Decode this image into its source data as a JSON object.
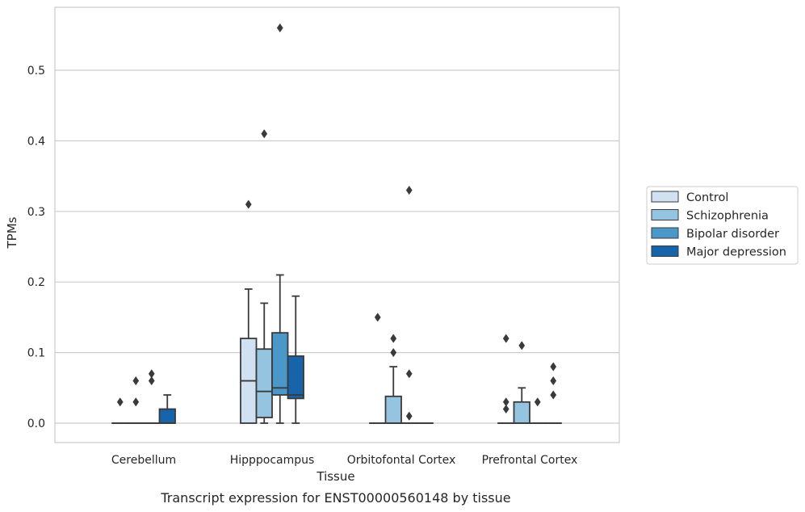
{
  "chart_data": {
    "type": "box",
    "xlabel": "Tissue",
    "ylabel": "TPMs",
    "caption": "Transcript expression for ENST00000560148 by tissue",
    "ylim": [
      -0.028,
      0.59
    ],
    "yticks": [
      0.0,
      0.1,
      0.2,
      0.3,
      0.4,
      0.5
    ],
    "ytick_labels": [
      "0.0",
      "0.1",
      "0.2",
      "0.3",
      "0.4",
      "0.5"
    ],
    "grid": "horizontal",
    "legend_position": "right",
    "categories": [
      "Cerebellum",
      "Hipppocampus",
      "Orbitofontal Cortex",
      "Prefrontal Cortex"
    ],
    "series": [
      {
        "name": "Control",
        "color": "#d0e1f2",
        "boxes": [
          {
            "q1": 0,
            "median": 0,
            "q3": 0,
            "whisker_low": 0,
            "whisker_high": 0,
            "outliers": [
              0.03
            ]
          },
          {
            "q1": 0,
            "median": 0.06,
            "q3": 0.12,
            "whisker_low": 0,
            "whisker_high": 0.19,
            "outliers": [
              0.31
            ]
          },
          {
            "q1": 0,
            "median": 0,
            "q3": 0,
            "whisker_low": 0,
            "whisker_high": 0,
            "outliers": [
              0.15
            ]
          },
          {
            "q1": 0,
            "median": 0,
            "q3": 0,
            "whisker_low": 0,
            "whisker_high": 0,
            "outliers": [
              0.12,
              0.03,
              0.02
            ]
          }
        ]
      },
      {
        "name": "Schizophrenia",
        "color": "#94c4df",
        "boxes": [
          {
            "q1": 0,
            "median": 0,
            "q3": 0,
            "whisker_low": 0,
            "whisker_high": 0,
            "outliers": [
              0.06,
              0.03
            ]
          },
          {
            "q1": 0.008,
            "median": 0.045,
            "q3": 0.105,
            "whisker_low": 0,
            "whisker_high": 0.17,
            "outliers": [
              0.41
            ]
          },
          {
            "q1": 0,
            "median": 0,
            "q3": 0.038,
            "whisker_low": 0,
            "whisker_high": 0.08,
            "outliers": [
              0.12,
              0.1
            ]
          },
          {
            "q1": 0,
            "median": 0,
            "q3": 0.03,
            "whisker_low": 0,
            "whisker_high": 0.05,
            "outliers": [
              0.11
            ]
          }
        ]
      },
      {
        "name": "Bipolar disorder",
        "color": "#4a98c9",
        "boxes": [
          {
            "q1": 0,
            "median": 0,
            "q3": 0,
            "whisker_low": 0,
            "whisker_high": 0,
            "outliers": [
              0.07,
              0.06
            ]
          },
          {
            "q1": 0.04,
            "median": 0.05,
            "q3": 0.128,
            "whisker_low": 0,
            "whisker_high": 0.21,
            "outliers": [
              0.56
            ]
          },
          {
            "q1": 0,
            "median": 0,
            "q3": 0,
            "whisker_low": 0,
            "whisker_high": 0,
            "outliers": [
              0.33,
              0.07,
              0.01
            ]
          },
          {
            "q1": 0,
            "median": 0,
            "q3": 0,
            "whisker_low": 0,
            "whisker_high": 0,
            "outliers": [
              0.03
            ]
          }
        ]
      },
      {
        "name": "Major depression",
        "color": "#1764ab",
        "boxes": [
          {
            "q1": 0,
            "median": 0,
            "q3": 0.02,
            "whisker_low": 0,
            "whisker_high": 0.04,
            "outliers": []
          },
          {
            "q1": 0.035,
            "median": 0.04,
            "q3": 0.095,
            "whisker_low": 0,
            "whisker_high": 0.18,
            "outliers": []
          },
          {
            "q1": 0,
            "median": 0,
            "q3": 0,
            "whisker_low": 0,
            "whisker_high": 0,
            "outliers": []
          },
          {
            "q1": 0,
            "median": 0,
            "q3": 0,
            "whisker_low": 0,
            "whisker_high": 0,
            "outliers": [
              0.08,
              0.06,
              0.04
            ]
          }
        ]
      }
    ]
  }
}
